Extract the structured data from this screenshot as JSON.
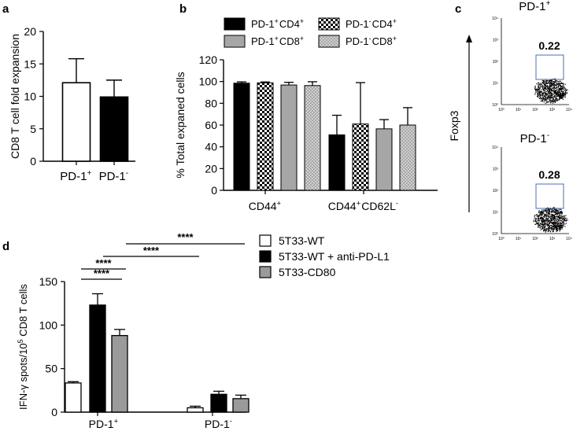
{
  "panel_letters": {
    "a": "a",
    "b": "b",
    "c": "c",
    "d": "d"
  },
  "chart_data": [
    {
      "panel": "a",
      "type": "bar",
      "ylabel": "CD8 T cell fold expansion",
      "categories": [
        {
          "main": "PD-1",
          "sup": "+"
        },
        {
          "main": "PD-1",
          "sup": "-"
        }
      ],
      "values": [
        12.1,
        9.9
      ],
      "errors": [
        3.7,
        2.6
      ],
      "fills": [
        "#ffffff",
        "#000000"
      ],
      "ylim": [
        0,
        20
      ],
      "yticks": [
        0,
        5,
        10,
        15,
        20
      ]
    },
    {
      "panel": "b",
      "type": "bar",
      "ylabel": "% Total expaned cells",
      "ylim": [
        0,
        120
      ],
      "yticks": [
        0,
        20,
        40,
        60,
        80,
        100,
        120
      ],
      "categories": [
        [
          {
            "t": "CD44",
            "s": "+"
          }
        ],
        [
          {
            "t": "CD44",
            "s": "+"
          },
          {
            "t": "CD62L",
            "s": "-"
          }
        ]
      ],
      "series": [
        {
          "name": [
            {
              "t": "PD-1",
              "s": "+"
            },
            {
              "t": "CD4",
              "s": "+"
            }
          ],
          "pattern": "solid-black",
          "values": [
            98.5,
            51
          ],
          "errors": [
            1.2,
            18
          ]
        },
        {
          "name": [
            {
              "t": "PD-1",
              "s": "-"
            },
            {
              "t": "CD4",
              "s": "+"
            }
          ],
          "pattern": "checker",
          "values": [
            98.8,
            61
          ],
          "errors": [
            0.8,
            38
          ]
        },
        {
          "name": [
            {
              "t": "PD-1",
              "s": "+"
            },
            {
              "t": "CD8",
              "s": "+"
            }
          ],
          "pattern": "solid-gray",
          "values": [
            96.8,
            56.5
          ],
          "errors": [
            2.5,
            8.5
          ]
        },
        {
          "name": [
            {
              "t": "PD-1",
              "s": "-"
            },
            {
              "t": "CD8",
              "s": "+"
            }
          ],
          "pattern": "dotted-gray",
          "values": [
            96.3,
            60
          ],
          "errors": [
            3.5,
            16
          ]
        }
      ]
    },
    {
      "panel": "c",
      "type": "scatter",
      "ylabel": "Foxp3",
      "plots": [
        {
          "title": {
            "main": "PD-1",
            "sup": "+"
          },
          "gate_percent": "0.22"
        },
        {
          "title": {
            "main": "PD-1",
            "sup": "-"
          },
          "gate_percent": "0.28"
        }
      ],
      "log_ticks": [
        "10⁰",
        "10¹",
        "10²",
        "10³",
        "10⁴"
      ]
    },
    {
      "panel": "d",
      "type": "bar",
      "ylabel": {
        "pre": "IFN-γ spots/10",
        "sup": "5",
        "post": " CD8 T cells"
      },
      "ylim": [
        0,
        150
      ],
      "yticks": [
        0,
        50,
        100,
        150
      ],
      "categories": [
        {
          "main": "PD-1",
          "sup": "+"
        },
        {
          "main": "PD-1",
          "sup": "-"
        }
      ],
      "series": [
        {
          "name": "5T33-WT",
          "fill": "#ffffff",
          "values": [
            33.5,
            5
          ],
          "errors": [
            1.5,
            1.8
          ]
        },
        {
          "name": "5T33-WT + anti-PD-L1",
          "fill": "#000000",
          "values": [
            123,
            20.5
          ],
          "errors": [
            13,
            3.5
          ]
        },
        {
          "name": "5T33-CD80",
          "fill": "#9a9a9a",
          "values": [
            88,
            15.5
          ],
          "errors": [
            7,
            4
          ]
        }
      ],
      "significance": [
        {
          "label": "****",
          "from": "5T33-WT",
          "to": "5T33-WT + anti-PD-L1"
        },
        {
          "label": "****",
          "from": "5T33-WT",
          "to": "5T33-CD80"
        },
        {
          "label": "****",
          "from": "5T33-WT + anti-PD-L1",
          "to": "5T33-WT"
        },
        {
          "label": "****",
          "from": "5T33-CD80",
          "to": "5T33-WT"
        }
      ]
    }
  ]
}
